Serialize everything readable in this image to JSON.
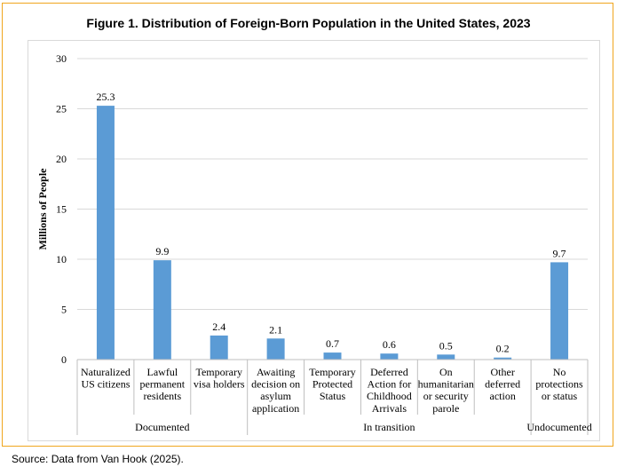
{
  "figure": {
    "title": "Figure 1. Distribution of Foreign-Born Population in the United States, 2023",
    "source": "Source: Data from Van Hook (2025)."
  },
  "colors": {
    "bar": "#5b9bd5",
    "grid": "#d9d9d9",
    "axis": "#bfbfbf",
    "frame": "#f0a61e"
  },
  "chart_data": {
    "type": "bar",
    "title": "Figure 1. Distribution of Foreign-Born Population in the United States, 2023",
    "ylabel": "Millions of People",
    "xlabel": "",
    "ylim": [
      0,
      30
    ],
    "yticks": [
      0,
      5,
      10,
      15,
      20,
      25,
      30
    ],
    "grid": true,
    "legend": "none",
    "categories": [
      [
        "Naturalized",
        "US citizens"
      ],
      [
        "Lawful",
        "permanent",
        "residents"
      ],
      [
        "Temporary",
        "visa holders"
      ],
      [
        "Awaiting",
        "decision on",
        "asylum",
        "application"
      ],
      [
        "Temporary",
        "Protected",
        "Status"
      ],
      [
        "Deferred",
        "Action for",
        "Childhood",
        "Arrivals"
      ],
      [
        "On",
        "humanitarian",
        "or security",
        "parole"
      ],
      [
        "Other",
        "deferred",
        "action"
      ],
      [
        "No",
        "protections",
        "or status"
      ]
    ],
    "values": [
      25.3,
      9.9,
      2.4,
      2.1,
      0.7,
      0.6,
      0.5,
      0.2,
      9.7
    ],
    "value_labels": [
      "25.3",
      "9.9",
      "2.4",
      "2.1",
      "0.7",
      "0.6",
      "0.5",
      "0.2",
      "9.7"
    ],
    "groups": [
      {
        "label": "Documented",
        "start": 0,
        "end": 2
      },
      {
        "label": "In transition",
        "start": 3,
        "end": 7
      },
      {
        "label": "Undocumented",
        "start": 8,
        "end": 8
      }
    ]
  }
}
